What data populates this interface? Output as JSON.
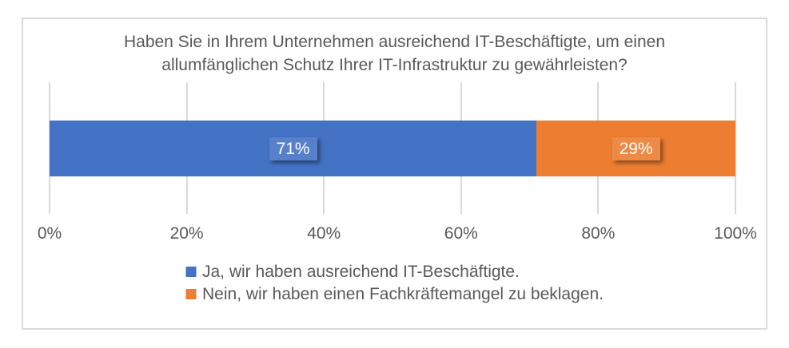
{
  "chart_data": {
    "type": "bar",
    "orientation": "horizontal",
    "stacked": true,
    "title": "Haben Sie in Ihrem Unternehmen ausreichend IT-Beschäftigte, um einen allumfänglichen Schutz Ihrer IT-Infrastruktur zu gewährleisten?",
    "series": [
      {
        "name": "Ja, wir haben ausreichend IT-Beschäftigte.",
        "value": 71,
        "data_label": "71%",
        "color": "#4472C4"
      },
      {
        "name": "Nein, wir haben einen Fachkräftemangel zu beklagen.",
        "value": 29,
        "data_label": "29%",
        "color": "#ED7D31"
      }
    ],
    "x_ticks": [
      "0%",
      "20%",
      "40%",
      "60%",
      "80%",
      "100%"
    ],
    "xlim": [
      0,
      100
    ],
    "grid": "vertical",
    "legend_position": "bottom"
  },
  "colors": {
    "series_blue": "#4472C4",
    "series_orange": "#ED7D31",
    "text": "#595959",
    "gridline": "#D9D9D9",
    "card_border": "#D9D9D9",
    "data_label_text": "#FFFFFF",
    "background": "#FFFFFF"
  }
}
